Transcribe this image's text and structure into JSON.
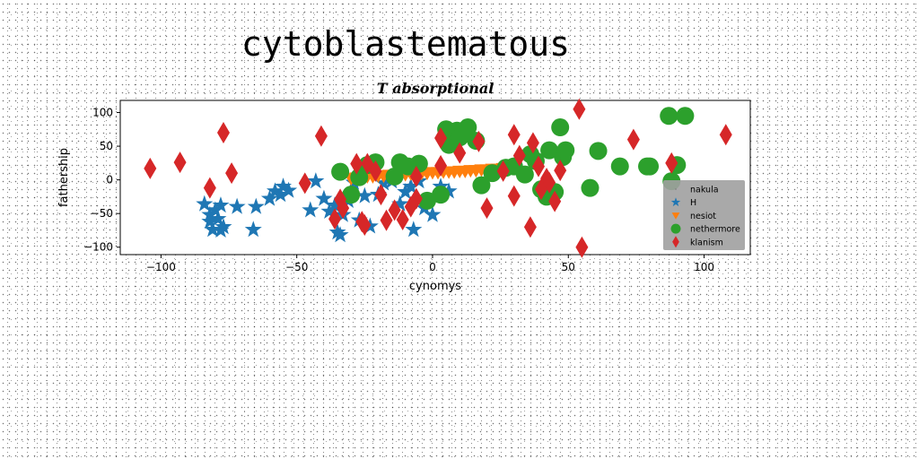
{
  "chart_data": {
    "type": "scatter",
    "title": "cytoblastematous",
    "subtitle": "T absorptional",
    "xlabel": "cynomys",
    "ylabel": "fathership",
    "xlim": [
      -115,
      117
    ],
    "ylim": [
      -111,
      118
    ],
    "xticks": [
      -100,
      -50,
      0,
      50,
      100
    ],
    "yticks": [
      -100,
      -50,
      0,
      50,
      100
    ],
    "grid": false,
    "legend_position": "lower-right",
    "series": [
      {
        "name": "nakula",
        "marker": "point",
        "color": "#808080",
        "points": []
      },
      {
        "name": "H",
        "marker": "star",
        "color": "#1f77b4",
        "points": [
          [
            -84,
            -36
          ],
          [
            -82,
            -52
          ],
          [
            -82,
            -62
          ],
          [
            -81,
            -74
          ],
          [
            -80,
            -45
          ],
          [
            -79,
            -58
          ],
          [
            -78,
            -38
          ],
          [
            -78,
            -75
          ],
          [
            -77,
            -70
          ],
          [
            -72,
            -40
          ],
          [
            -66,
            -74
          ],
          [
            -65,
            -40
          ],
          [
            -60,
            -28
          ],
          [
            -58,
            -17
          ],
          [
            -56,
            -22
          ],
          [
            -55,
            -10
          ],
          [
            -53,
            -16
          ],
          [
            -45,
            -45
          ],
          [
            -43,
            -2
          ],
          [
            -40,
            -28
          ],
          [
            -38,
            -47
          ],
          [
            -36,
            -38
          ],
          [
            -35,
            -78
          ],
          [
            -34,
            -82
          ],
          [
            -33,
            -52
          ],
          [
            -31,
            -31
          ],
          [
            -29,
            -4
          ],
          [
            -27,
            -60
          ],
          [
            -25,
            -24
          ],
          [
            -23,
            -69
          ],
          [
            -20,
            -22
          ],
          [
            -18,
            -5
          ],
          [
            -15,
            -2
          ],
          [
            -12,
            -36
          ],
          [
            -10,
            -18
          ],
          [
            -8,
            -10
          ],
          [
            -7,
            -74
          ],
          [
            -5,
            -2
          ],
          [
            -3,
            -42
          ],
          [
            0,
            -52
          ],
          [
            3,
            -10
          ],
          [
            6,
            -17
          ]
        ]
      },
      {
        "name": "nesiot",
        "marker": "triangle-down",
        "color": "#ff7f0e",
        "points": [
          [
            -30,
            2
          ],
          [
            -28,
            3
          ],
          [
            -26,
            4
          ],
          [
            -24,
            5
          ],
          [
            -22,
            5
          ],
          [
            -20,
            6
          ],
          [
            -18,
            6
          ],
          [
            -16,
            7
          ],
          [
            -14,
            7
          ],
          [
            -12,
            8
          ],
          [
            -10,
            8
          ],
          [
            -8,
            9
          ],
          [
            -6,
            9
          ],
          [
            -4,
            10
          ],
          [
            -2,
            10
          ],
          [
            0,
            11
          ],
          [
            2,
            11
          ],
          [
            4,
            12
          ],
          [
            6,
            12
          ],
          [
            8,
            12
          ],
          [
            10,
            13
          ],
          [
            12,
            13
          ],
          [
            14,
            14
          ],
          [
            16,
            14
          ],
          [
            18,
            15
          ],
          [
            20,
            15
          ],
          [
            22,
            16
          ],
          [
            24,
            16
          ],
          [
            26,
            17
          ],
          [
            28,
            17
          ],
          [
            30,
            18
          ]
        ]
      },
      {
        "name": "nethermore",
        "marker": "circle",
        "color": "#2ca02c",
        "points": [
          [
            -34,
            12
          ],
          [
            -30,
            -22
          ],
          [
            -27,
            4
          ],
          [
            -24,
            22
          ],
          [
            -21,
            26
          ],
          [
            -14,
            5
          ],
          [
            -12,
            26
          ],
          [
            -9,
            20
          ],
          [
            -5,
            24
          ],
          [
            -2,
            -31
          ],
          [
            3,
            -22
          ],
          [
            5,
            75
          ],
          [
            6,
            52
          ],
          [
            9,
            73
          ],
          [
            10,
            63
          ],
          [
            13,
            78
          ],
          [
            16,
            58
          ],
          [
            18,
            -8
          ],
          [
            22,
            10
          ],
          [
            27,
            18
          ],
          [
            30,
            20
          ],
          [
            34,
            8
          ],
          [
            36,
            38
          ],
          [
            38,
            28
          ],
          [
            40,
            -14
          ],
          [
            42,
            -25
          ],
          [
            43,
            44
          ],
          [
            45,
            -18
          ],
          [
            47,
            78
          ],
          [
            48,
            34
          ],
          [
            49,
            44
          ],
          [
            58,
            -12
          ],
          [
            61,
            43
          ],
          [
            69,
            20
          ],
          [
            79,
            20
          ],
          [
            80,
            20
          ],
          [
            87,
            95
          ],
          [
            88,
            -2
          ],
          [
            90,
            22
          ],
          [
            93,
            95
          ]
        ]
      },
      {
        "name": "klanism",
        "marker": "thin-diamond",
        "color": "#d62728",
        "points": [
          [
            -104,
            17
          ],
          [
            -93,
            26
          ],
          [
            -82,
            -12
          ],
          [
            -77,
            70
          ],
          [
            -74,
            10
          ],
          [
            -47,
            -5
          ],
          [
            -41,
            65
          ],
          [
            -36,
            -58
          ],
          [
            -34,
            -29
          ],
          [
            -33,
            -42
          ],
          [
            -28,
            24
          ],
          [
            -26,
            -62
          ],
          [
            -25,
            -67
          ],
          [
            -24,
            24
          ],
          [
            -21,
            13
          ],
          [
            -19,
            -22
          ],
          [
            -17,
            -60
          ],
          [
            -14,
            -45
          ],
          [
            -11,
            -59
          ],
          [
            -8,
            -40
          ],
          [
            -6,
            -28
          ],
          [
            -6,
            5
          ],
          [
            3,
            62
          ],
          [
            3,
            21
          ],
          [
            10,
            40
          ],
          [
            17,
            57
          ],
          [
            20,
            -42
          ],
          [
            26,
            13
          ],
          [
            30,
            -24
          ],
          [
            30,
            67
          ],
          [
            32,
            36
          ],
          [
            36,
            -70
          ],
          [
            37,
            55
          ],
          [
            39,
            20
          ],
          [
            40,
            -14
          ],
          [
            42,
            2
          ],
          [
            43,
            -4
          ],
          [
            45,
            -32
          ],
          [
            47,
            14
          ],
          [
            54,
            105
          ],
          [
            55,
            -100
          ],
          [
            74,
            60
          ],
          [
            88,
            25
          ],
          [
            108,
            67
          ]
        ]
      }
    ]
  }
}
